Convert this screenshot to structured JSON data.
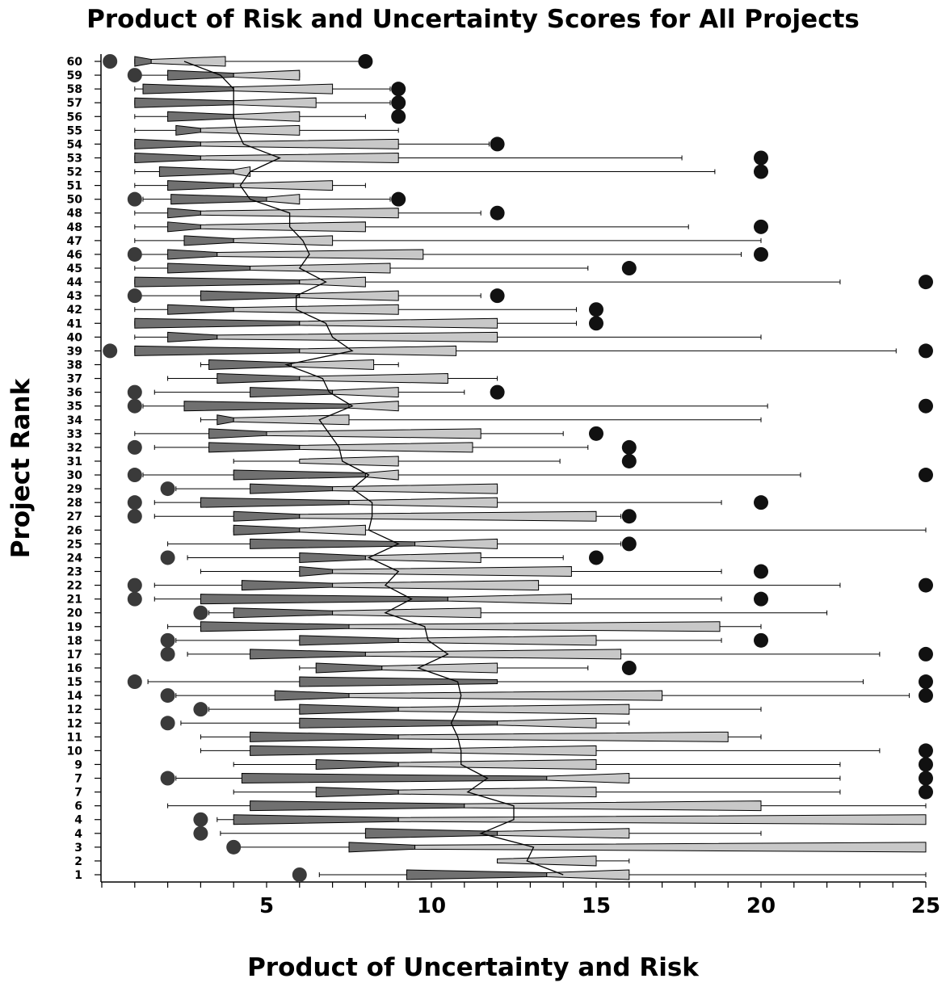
{
  "chart_data": {
    "type": "boxplot",
    "title": "Product of Risk and Uncertainty Scores for All Projects",
    "xlabel": "Product of Uncertainty and Risk",
    "ylabel": "Project Rank",
    "xlim": [
      0,
      25
    ],
    "xticks": [
      5,
      10,
      15,
      20,
      25
    ],
    "grid": false,
    "legend": "none",
    "colors": {
      "lower_box": "#707070",
      "upper_box": "#c8c8c8",
      "outlier": "#111111",
      "outlier_dark": "#3a3a3a"
    },
    "series": [
      {
        "rank": "60",
        "wl": 1,
        "q1": 1,
        "med": 1.5,
        "q3": 3.75,
        "wh": 8,
        "out": [
          0.25,
          8
        ]
      },
      {
        "rank": "59",
        "wl": 1,
        "q1": 2,
        "med": 4,
        "q3": 6,
        "wh": 6,
        "out": [
          1
        ]
      },
      {
        "rank": "58",
        "wl": 1,
        "q1": 1.25,
        "med": 4,
        "q3": 7,
        "wh": 8.75,
        "out": [
          9
        ]
      },
      {
        "rank": "57",
        "wl": 1,
        "q1": 1,
        "med": 4,
        "q3": 6.5,
        "wh": 8.75,
        "out": [
          9
        ]
      },
      {
        "rank": "56",
        "wl": 1,
        "q1": 2,
        "med": 4,
        "q3": 6,
        "wh": 8,
        "out": [
          9
        ]
      },
      {
        "rank": "55",
        "wl": 1,
        "q1": 2.25,
        "med": 3,
        "q3": 6,
        "wh": 9,
        "out": []
      },
      {
        "rank": "54",
        "wl": 1,
        "q1": 1,
        "med": 3,
        "q3": 9,
        "wh": 11.75,
        "out": [
          12
        ]
      },
      {
        "rank": "53",
        "wl": 1,
        "q1": 1,
        "med": 3,
        "q3": 9,
        "wh": 17.6,
        "out": [
          20
        ]
      },
      {
        "rank": "52",
        "wl": 1,
        "q1": 1.75,
        "med": 4,
        "q3": 4.5,
        "wh": 18.6,
        "out": [
          20
        ]
      },
      {
        "rank": "51",
        "wl": 1,
        "q1": 2,
        "med": 4,
        "q3": 7,
        "wh": 8,
        "out": []
      },
      {
        "rank": "50",
        "wl": 1.25,
        "q1": 2.1,
        "med": 5,
        "q3": 6,
        "wh": 8.75,
        "out": [
          1,
          9
        ]
      },
      {
        "rank": "48",
        "wl": 1,
        "q1": 2,
        "med": 3,
        "q3": 9,
        "wh": 11.5,
        "out": [
          12
        ]
      },
      {
        "rank": "48",
        "wl": 1,
        "q1": 2,
        "med": 3,
        "q3": 8,
        "wh": 17.8,
        "out": [
          20
        ]
      },
      {
        "rank": "47",
        "wl": 1,
        "q1": 2.5,
        "med": 4,
        "q3": 7,
        "wh": 20,
        "out": []
      },
      {
        "rank": "46",
        "wl": 1,
        "q1": 2,
        "med": 3.5,
        "q3": 9.75,
        "wh": 19.4,
        "out": [
          1,
          20
        ]
      },
      {
        "rank": "45",
        "wl": 1,
        "q1": 2,
        "med": 4.5,
        "q3": 8.75,
        "wh": 14.75,
        "out": [
          16
        ]
      },
      {
        "rank": "44",
        "wl": 1,
        "q1": 1,
        "med": 6,
        "q3": 8,
        "wh": 22.4,
        "out": [
          25
        ]
      },
      {
        "rank": "43",
        "wl": 1,
        "q1": 3,
        "med": 6,
        "q3": 9,
        "wh": 11.5,
        "out": [
          1,
          12
        ]
      },
      {
        "rank": "42",
        "wl": 1,
        "q1": 2,
        "med": 4,
        "q3": 9,
        "wh": 14.4,
        "out": [
          15
        ]
      },
      {
        "rank": "41",
        "wl": 1,
        "q1": 1,
        "med": 6,
        "q3": 12,
        "wh": 14.4,
        "out": [
          15
        ]
      },
      {
        "rank": "40",
        "wl": 1,
        "q1": 2,
        "med": 3.5,
        "q3": 12,
        "wh": 20,
        "out": []
      },
      {
        "rank": "39",
        "wl": 1,
        "q1": 1,
        "med": 6,
        "q3": 10.75,
        "wh": 24.1,
        "out": [
          0.25,
          25
        ]
      },
      {
        "rank": "38",
        "wl": 3,
        "q1": 3.25,
        "med": 5.75,
        "q3": 8.25,
        "wh": 9,
        "out": []
      },
      {
        "rank": "37",
        "wl": 2,
        "q1": 3.5,
        "med": 6,
        "q3": 10.5,
        "wh": 12,
        "out": []
      },
      {
        "rank": "36",
        "wl": 1.6,
        "q1": 4.5,
        "med": 7,
        "q3": 9,
        "wh": 11,
        "out": [
          1,
          12
        ]
      },
      {
        "rank": "35",
        "wl": 1.25,
        "q1": 2.5,
        "med": 7.5,
        "q3": 9,
        "wh": 20.2,
        "out": [
          1,
          25
        ]
      },
      {
        "rank": "34",
        "wl": 3,
        "q1": 3.5,
        "med": 4,
        "q3": 7.5,
        "wh": 20,
        "out": []
      },
      {
        "rank": "33",
        "wl": 1,
        "q1": 3.25,
        "med": 5,
        "q3": 11.5,
        "wh": 14,
        "out": [
          15
        ]
      },
      {
        "rank": "32",
        "wl": 1.6,
        "q1": 3.25,
        "med": 6,
        "q3": 11.25,
        "wh": 14.75,
        "out": [
          1,
          16
        ]
      },
      {
        "rank": "31",
        "wl": 4,
        "q1": 6,
        "med": 6,
        "q3": 9,
        "wh": 13.9,
        "out": [
          16
        ]
      },
      {
        "rank": "30",
        "wl": 1.25,
        "q1": 4,
        "med": 8,
        "q3": 9,
        "wh": 21.2,
        "out": [
          1,
          25
        ]
      },
      {
        "rank": "29",
        "wl": 2.25,
        "q1": 4.5,
        "med": 7,
        "q3": 12,
        "wh": 12,
        "out": [
          2
        ]
      },
      {
        "rank": "28",
        "wl": 1.6,
        "q1": 3,
        "med": 7.5,
        "q3": 12,
        "wh": 18.8,
        "out": [
          1,
          20
        ]
      },
      {
        "rank": "27",
        "wl": 1.6,
        "q1": 4,
        "med": 6,
        "q3": 15,
        "wh": 15.75,
        "out": [
          1,
          16
        ]
      },
      {
        "rank": "26",
        "wl": 4,
        "q1": 4,
        "med": 6,
        "q3": 8,
        "wh": 25,
        "out": []
      },
      {
        "rank": "25",
        "wl": 2,
        "q1": 4.5,
        "med": 9.5,
        "q3": 12,
        "wh": 15.75,
        "out": [
          16
        ]
      },
      {
        "rank": "24",
        "wl": 2.6,
        "q1": 6,
        "med": 8,
        "q3": 11.5,
        "wh": 14,
        "out": [
          2,
          15
        ]
      },
      {
        "rank": "23",
        "wl": 3,
        "q1": 6,
        "med": 7,
        "q3": 14.25,
        "wh": 18.8,
        "out": [
          20
        ]
      },
      {
        "rank": "22",
        "wl": 1.6,
        "q1": 4.25,
        "med": 7,
        "q3": 13.25,
        "wh": 22.4,
        "out": [
          1,
          25
        ]
      },
      {
        "rank": "21",
        "wl": 1.6,
        "q1": 3,
        "med": 10.5,
        "q3": 14.25,
        "wh": 18.8,
        "out": [
          1,
          20
        ]
      },
      {
        "rank": "20",
        "wl": 3.25,
        "q1": 4,
        "med": 7,
        "q3": 11.5,
        "wh": 22,
        "out": [
          3
        ]
      },
      {
        "rank": "19",
        "wl": 2,
        "q1": 3,
        "med": 7.5,
        "q3": 18.75,
        "wh": 20,
        "out": []
      },
      {
        "rank": "18",
        "wl": 2.25,
        "q1": 6,
        "med": 9,
        "q3": 15,
        "wh": 18.8,
        "out": [
          2,
          20
        ]
      },
      {
        "rank": "17",
        "wl": 2.6,
        "q1": 4.5,
        "med": 8,
        "q3": 15.75,
        "wh": 23.6,
        "out": [
          2,
          25
        ]
      },
      {
        "rank": "16",
        "wl": 6,
        "q1": 6.5,
        "med": 8.5,
        "q3": 12,
        "wh": 14.75,
        "out": [
          16
        ]
      },
      {
        "rank": "15",
        "wl": 1.4,
        "q1": 6,
        "med": 12,
        "q3": 12,
        "wh": 23.1,
        "out": [
          1,
          25
        ]
      },
      {
        "rank": "14",
        "wl": 2.25,
        "q1": 5.25,
        "med": 7.5,
        "q3": 17,
        "wh": 24.5,
        "out": [
          2,
          25
        ]
      },
      {
        "rank": "12",
        "wl": 3.25,
        "q1": 6,
        "med": 9,
        "q3": 16,
        "wh": 20,
        "out": [
          3
        ]
      },
      {
        "rank": "12",
        "wl": 2.4,
        "q1": 6,
        "med": 12,
        "q3": 15,
        "wh": 16,
        "out": [
          2
        ]
      },
      {
        "rank": "11",
        "wl": 3,
        "q1": 4.5,
        "med": 9,
        "q3": 19,
        "wh": 20,
        "out": []
      },
      {
        "rank": "10",
        "wl": 3,
        "q1": 4.5,
        "med": 10,
        "q3": 15,
        "wh": 23.6,
        "out": [
          25
        ]
      },
      {
        "rank": "9",
        "wl": 4,
        "q1": 6.5,
        "med": 9,
        "q3": 15,
        "wh": 22.4,
        "out": [
          25
        ]
      },
      {
        "rank": "7",
        "wl": 2.25,
        "q1": 4.25,
        "med": 13.5,
        "q3": 16,
        "wh": 22.4,
        "out": [
          2,
          25
        ]
      },
      {
        "rank": "7",
        "wl": 4,
        "q1": 6.5,
        "med": 9,
        "q3": 15,
        "wh": 22.4,
        "out": [
          25
        ]
      },
      {
        "rank": "6",
        "wl": 2,
        "q1": 4.5,
        "med": 11,
        "q3": 20,
        "wh": 25,
        "out": []
      },
      {
        "rank": "4",
        "wl": 3.5,
        "q1": 4,
        "med": 9,
        "q3": 25,
        "wh": 25,
        "out": [
          3
        ]
      },
      {
        "rank": "4",
        "wl": 3.6,
        "q1": 8,
        "med": 12,
        "q3": 16,
        "wh": 20,
        "out": [
          3
        ]
      },
      {
        "rank": "3",
        "wl": 4,
        "q1": 7.5,
        "med": 9.5,
        "q3": 25,
        "wh": 25,
        "out": [
          4
        ]
      },
      {
        "rank": "2",
        "wl": 12,
        "q1": 12,
        "med": 12,
        "q3": 15,
        "wh": 16,
        "out": []
      },
      {
        "rank": "1",
        "wl": 6.6,
        "q1": 9.25,
        "med": 13.5,
        "q3": 16,
        "wh": 25,
        "out": [
          6
        ]
      }
    ],
    "trend_line": [
      2.5,
      3.6,
      4,
      4,
      4,
      4.1,
      4.3,
      5.4,
      4.5,
      4.2,
      4.5,
      5.7,
      5.7,
      6.1,
      6.3,
      6,
      6.8,
      5.9,
      5.9,
      6.8,
      7,
      7.6,
      5.6,
      6.7,
      6.9,
      7.6,
      6.6,
      6.9,
      7.2,
      7.3,
      8.1,
      7.6,
      8.2,
      8.2,
      8.1,
      9,
      8.1,
      9,
      8.6,
      9.4,
      8.6,
      9.8,
      9.9,
      10.5,
      9.6,
      10.8,
      10.9,
      10.8,
      10.6,
      10.8,
      10.9,
      10.9,
      11.7,
      11.1,
      12.5,
      12.5,
      11.5,
      13.1,
      12.9,
      14
    ]
  }
}
